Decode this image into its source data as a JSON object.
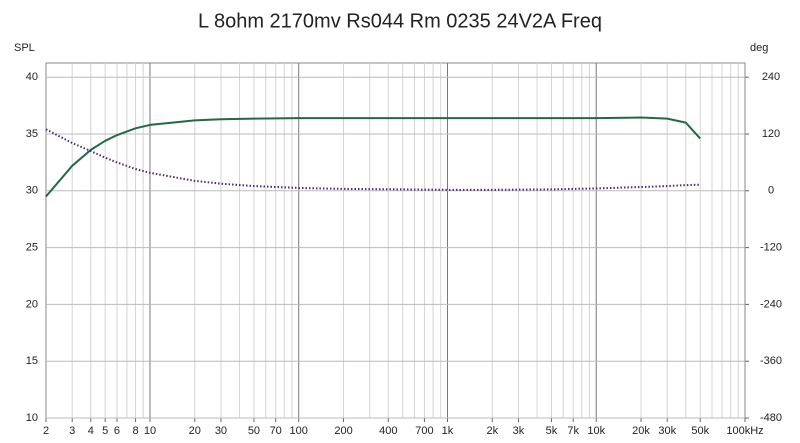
{
  "chart_data": {
    "type": "line",
    "title": "L 8ohm 2170mv Rs044 Rm 0235 24V2A Freq",
    "y_label": "SPL",
    "y2_label": "deg",
    "log_x": true,
    "grid": true,
    "xlim": [
      2,
      100000
    ],
    "ylim": [
      10,
      41.25
    ],
    "y2lim": [
      -480,
      270
    ],
    "xticks": [
      2,
      3,
      4,
      5,
      6,
      8,
      10,
      20,
      30,
      50,
      70,
      100,
      200,
      400,
      700,
      {
        "value": 1000,
        "label": "1k"
      },
      {
        "value": 2000,
        "label": "2k"
      },
      {
        "value": 3000,
        "label": "3k"
      },
      {
        "value": 5000,
        "label": "5k"
      },
      {
        "value": 7000,
        "label": "7k"
      },
      {
        "value": 10000,
        "label": "10k"
      },
      {
        "value": 20000,
        "label": "20k"
      },
      {
        "value": 30000,
        "label": "30k"
      },
      {
        "value": 50000,
        "label": "50k"
      },
      {
        "value": 100000,
        "label": "100kHz"
      }
    ],
    "yticks": [
      10,
      15,
      20,
      25,
      30,
      35,
      40
    ],
    "y2ticks": [
      -480,
      -360,
      -240,
      -120,
      0,
      120,
      240
    ],
    "x": [
      2,
      3,
      4,
      5,
      6,
      8,
      10,
      20,
      30,
      50,
      100,
      200,
      500,
      1000,
      2000,
      5000,
      10000,
      20000,
      30000,
      40000,
      50000
    ],
    "series": [
      {
        "color": "#1e6b47",
        "values": [
          29.5,
          32.2,
          33.6,
          34.4,
          34.9,
          35.5,
          35.8,
          36.2,
          36.3,
          36.35,
          36.4,
          36.4,
          36.4,
          36.4,
          36.4,
          36.4,
          36.4,
          36.45,
          36.35,
          36.0,
          34.6
        ]
      },
      {
        "color": "#4b2a6b",
        "axis": "y2",
        "dotted": true,
        "values": [
          130,
          101,
          84,
          70,
          60,
          46,
          38,
          21,
          15,
          10,
          6,
          4,
          3,
          2,
          2,
          3,
          5,
          8,
          10,
          12,
          13
        ]
      }
    ]
  }
}
